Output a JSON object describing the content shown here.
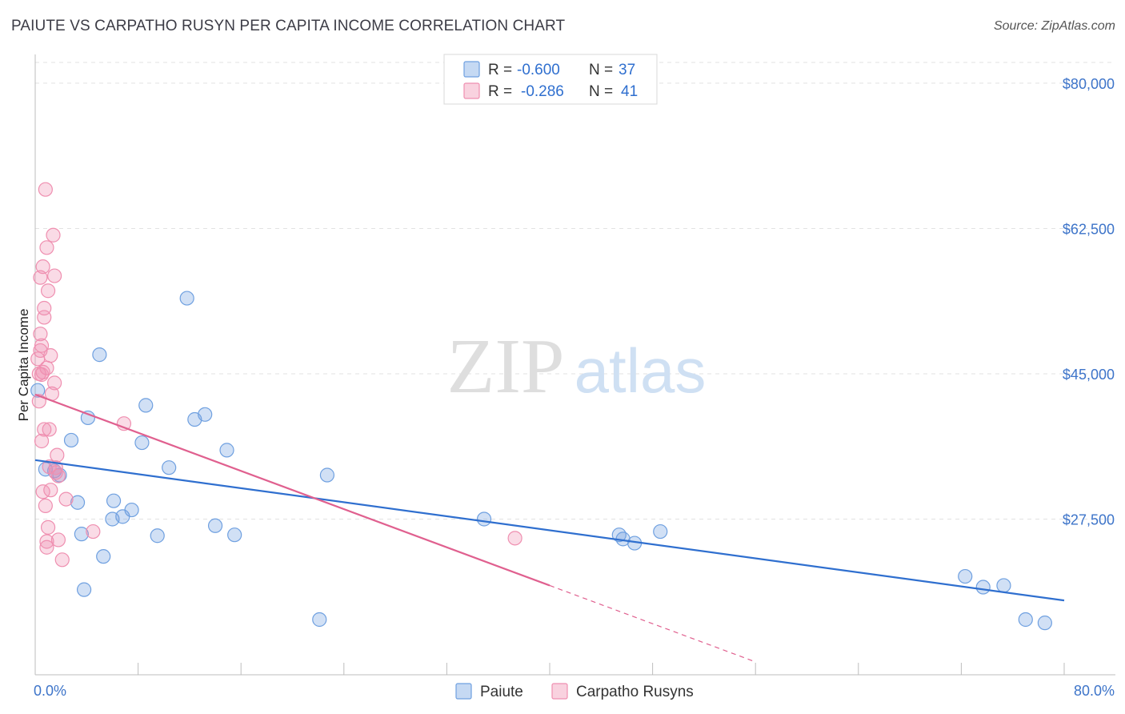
{
  "title": "PAIUTE VS CARPATHO RUSYN PER CAPITA INCOME CORRELATION CHART",
  "source": "Source: ZipAtlas.com",
  "watermark": {
    "zip": "ZIP",
    "atlas": "atlas"
  },
  "legend_box": [
    {
      "r_label": "R = ",
      "r_value": "-0.600",
      "n_label": "N = ",
      "n_value": "37",
      "color": "#6fa0e0"
    },
    {
      "r_label": "R = ",
      "r_value": "-0.286",
      "n_label": "N = ",
      "n_value": "41",
      "color": "#ef8fb0"
    }
  ],
  "chart_data": {
    "type": "scatter",
    "xlabel": "",
    "ylabel": "Per Capita Income",
    "xlim": [
      0,
      80
    ],
    "ylim": [
      10000,
      82500
    ],
    "x_tick_labels": [
      "0.0%",
      "80.0%"
    ],
    "y_ticks": [
      27500,
      45000,
      62500,
      80000
    ],
    "y_tick_labels": [
      "$27,500",
      "$45,000",
      "$62,500",
      "$80,000"
    ],
    "legend": [
      "Paiute",
      "Carpatho Rusyns"
    ],
    "series": [
      {
        "name": "Paiute",
        "color": "#6fa0e0",
        "line_color": "#2f6fcf",
        "trend": {
          "x": [
            0,
            80
          ],
          "y": [
            34600,
            17700
          ]
        },
        "points": [
          [
            0.2,
            43000
          ],
          [
            0.8,
            33500
          ],
          [
            1.5,
            33300
          ],
          [
            1.9,
            32800
          ],
          [
            2.8,
            37000
          ],
          [
            3.3,
            29500
          ],
          [
            3.6,
            25700
          ],
          [
            3.8,
            19000
          ],
          [
            4.1,
            39700
          ],
          [
            5.0,
            47300
          ],
          [
            5.3,
            23000
          ],
          [
            6.0,
            27500
          ],
          [
            6.1,
            29700
          ],
          [
            6.8,
            27800
          ],
          [
            7.5,
            28600
          ],
          [
            8.3,
            36700
          ],
          [
            8.6,
            41200
          ],
          [
            9.5,
            25500
          ],
          [
            10.4,
            33700
          ],
          [
            11.8,
            54100
          ],
          [
            12.4,
            39500
          ],
          [
            13.2,
            40100
          ],
          [
            14.0,
            26700
          ],
          [
            14.9,
            35800
          ],
          [
            15.5,
            25600
          ],
          [
            22.1,
            15400
          ],
          [
            22.7,
            32800
          ],
          [
            34.9,
            27500
          ],
          [
            45.4,
            25600
          ],
          [
            45.7,
            25100
          ],
          [
            46.6,
            24600
          ],
          [
            48.6,
            26000
          ],
          [
            72.3,
            20600
          ],
          [
            73.7,
            19300
          ],
          [
            75.3,
            19500
          ],
          [
            77.0,
            15400
          ],
          [
            78.5,
            15000
          ]
        ]
      },
      {
        "name": "Carpatho Rusyns",
        "color": "#ef8fb0",
        "line_color": "#e0608f",
        "trend": {
          "x": [
            0,
            40
          ],
          "y": [
            42500,
            19500
          ]
        },
        "trend_dashed": {
          "x": [
            40,
            56
          ],
          "y": [
            19500,
            10300
          ]
        },
        "points": [
          [
            0.3,
            45000
          ],
          [
            0.4,
            56600
          ],
          [
            0.4,
            49800
          ],
          [
            0.4,
            47800
          ],
          [
            0.5,
            48400
          ],
          [
            0.5,
            44900
          ],
          [
            0.6,
            45200
          ],
          [
            0.5,
            36900
          ],
          [
            0.6,
            57900
          ],
          [
            0.7,
            52900
          ],
          [
            0.7,
            51800
          ],
          [
            0.7,
            38300
          ],
          [
            0.6,
            30800
          ],
          [
            0.8,
            67200
          ],
          [
            0.9,
            60200
          ],
          [
            0.8,
            29100
          ],
          [
            0.9,
            24800
          ],
          [
            0.9,
            24100
          ],
          [
            1.0,
            55000
          ],
          [
            1.0,
            26500
          ],
          [
            1.1,
            38300
          ],
          [
            1.1,
            33800
          ],
          [
            1.2,
            47200
          ],
          [
            1.2,
            31000
          ],
          [
            1.3,
            42600
          ],
          [
            1.4,
            61700
          ],
          [
            1.5,
            56800
          ],
          [
            1.5,
            43900
          ],
          [
            1.6,
            33700
          ],
          [
            1.6,
            33100
          ],
          [
            1.7,
            35200
          ],
          [
            1.8,
            32700
          ],
          [
            1.8,
            25000
          ],
          [
            2.1,
            22600
          ],
          [
            2.4,
            29900
          ],
          [
            4.5,
            26000
          ],
          [
            6.9,
            39000
          ],
          [
            37.3,
            25200
          ],
          [
            0.2,
            46800
          ],
          [
            0.9,
            45700
          ],
          [
            0.3,
            41700
          ]
        ]
      }
    ]
  }
}
